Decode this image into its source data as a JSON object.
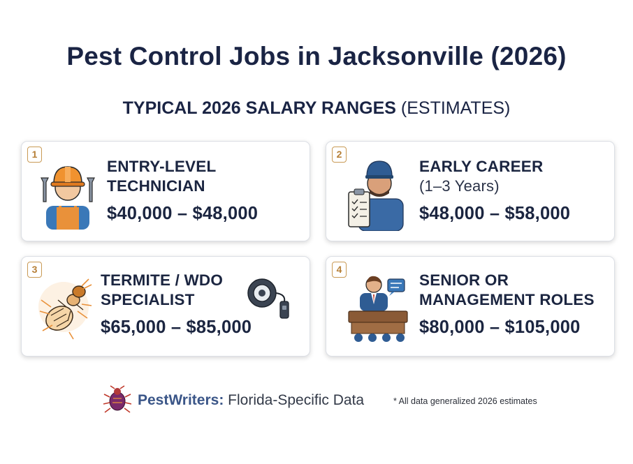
{
  "title": "Pest Control Jobs in Jacksonville (2026)",
  "subtitle": {
    "bold": "TYPICAL 2026 SALARY RANGES",
    "rest": "(ESTIMATES)"
  },
  "cards": [
    {
      "number": "1",
      "title_line1": "ENTRY-LEVEL",
      "title_line2": "TECHNICIAN",
      "salary": "$40,000 – $48,000",
      "icon": "technician-with-wrenches-icon"
    },
    {
      "number": "2",
      "title_line1": "EARLY CAREER",
      "title_line2": "(1–3 Years)",
      "salary": "$48,000 – $58,000",
      "icon": "worker-with-clipboard-icon"
    },
    {
      "number": "3",
      "title_line1": "TERMITE / WDO",
      "title_line2": "SPECIALIST",
      "salary": "$65,000 – $85,000",
      "icon": "termite-icon"
    },
    {
      "number": "4",
      "title_line1": "SENIOR OR",
      "title_line2": "MANAGEMENT ROLES",
      "salary": "$80,000 – $105,000",
      "icon": "manager-at-desk-icon"
    }
  ],
  "footer": {
    "brand": "PestWriters:",
    "tagline": "Florida-Specific Data",
    "note": "* All data generalized 2026 estimates"
  },
  "colors": {
    "navy": "#1a2444",
    "accent": "#c99a55",
    "blue": "#2f5c93",
    "orange": "#e9913a"
  }
}
